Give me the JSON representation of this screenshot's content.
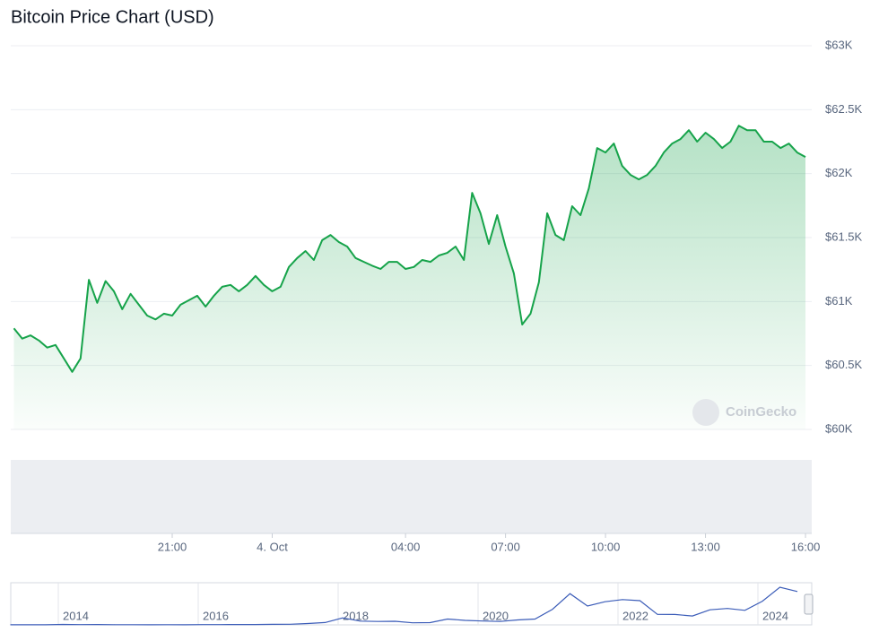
{
  "chart_data": [
    {
      "type": "line",
      "title": "Bitcoin Price Chart (USD)",
      "watermark": "CoinGecko",
      "categories": [
        null,
        null,
        null,
        null,
        null,
        null,
        null,
        null,
        null,
        null,
        null,
        null,
        null,
        null,
        null,
        null,
        null,
        null,
        null,
        "21:00",
        null,
        null,
        null,
        null,
        null,
        null,
        null,
        null,
        null,
        null,
        null,
        "4. Oct",
        null,
        null,
        null,
        null,
        null,
        null,
        null,
        null,
        null,
        null,
        null,
        null,
        null,
        null,
        null,
        "04:00",
        null,
        null,
        null,
        null,
        null,
        null,
        null,
        null,
        null,
        null,
        null,
        "07:00",
        null,
        null,
        null,
        null,
        null,
        null,
        null,
        null,
        null,
        null,
        null,
        "10:00",
        null,
        null,
        null,
        null,
        null,
        null,
        null,
        null,
        null,
        null,
        null,
        "13:00",
        null,
        null,
        null,
        null,
        null,
        null,
        null,
        null,
        null,
        null,
        null,
        "16:00"
      ],
      "values": [
        60790,
        60710,
        60735,
        60695,
        60640,
        60660,
        60555,
        60450,
        60555,
        61170,
        60990,
        61160,
        61080,
        60940,
        61060,
        60975,
        60890,
        60860,
        60905,
        60890,
        60975,
        61010,
        61045,
        60960,
        61045,
        61115,
        61130,
        61080,
        61130,
        61200,
        61130,
        61080,
        61115,
        61270,
        61340,
        61395,
        61325,
        61480,
        61520,
        61465,
        61430,
        61340,
        61310,
        61280,
        61255,
        61310,
        61310,
        61255,
        61270,
        61325,
        61310,
        61360,
        61380,
        61430,
        61325,
        61850,
        61690,
        61450,
        61675,
        61430,
        61220,
        60820,
        60905,
        61150,
        61690,
        61520,
        61480,
        61745,
        61675,
        61885,
        62200,
        62165,
        62235,
        62060,
        61990,
        61955,
        61990,
        62060,
        62165,
        62235,
        62270,
        62340,
        62250,
        62320,
        62270,
        62200,
        62250,
        62375,
        62340,
        62340,
        62250,
        62250,
        62200,
        62235,
        62165,
        62130
      ],
      "color": "#16a34a",
      "ylim": [
        60000,
        63000
      ],
      "yticks": [
        {
          "value": 60000,
          "label": "$60K"
        },
        {
          "value": 60500,
          "label": "$60.5K"
        },
        {
          "value": 61000,
          "label": "$61K"
        },
        {
          "value": 61500,
          "label": "$61.5K"
        },
        {
          "value": 62000,
          "label": "$62K"
        },
        {
          "value": 62500,
          "label": "$62.5K"
        },
        {
          "value": 63000,
          "label": "$63K"
        }
      ],
      "grid": true
    },
    {
      "type": "line",
      "categories": [
        null,
        null,
        null,
        "2014",
        null,
        null,
        null,
        null,
        null,
        null,
        null,
        "2016",
        null,
        null,
        null,
        null,
        null,
        null,
        null,
        "2018",
        null,
        null,
        null,
        null,
        null,
        null,
        null,
        "2020",
        null,
        null,
        null,
        null,
        null,
        null,
        null,
        "2022",
        null,
        null,
        null,
        null,
        null,
        null,
        null,
        "2024",
        null,
        null
      ],
      "values": [
        120,
        100,
        200,
        800,
        450,
        600,
        380,
        300,
        240,
        260,
        240,
        430,
        420,
        650,
        620,
        1000,
        1200,
        2500,
        4300,
        13000,
        7000,
        6400,
        6600,
        3800,
        4100,
        10800,
        8300,
        7200,
        6400,
        9100,
        10800,
        29000,
        58000,
        35000,
        43000,
        47000,
        45000,
        19500,
        19400,
        16500,
        28000,
        30500,
        27000,
        44000,
        70000,
        62000
      ],
      "color": "#3b5cb8"
    }
  ]
}
